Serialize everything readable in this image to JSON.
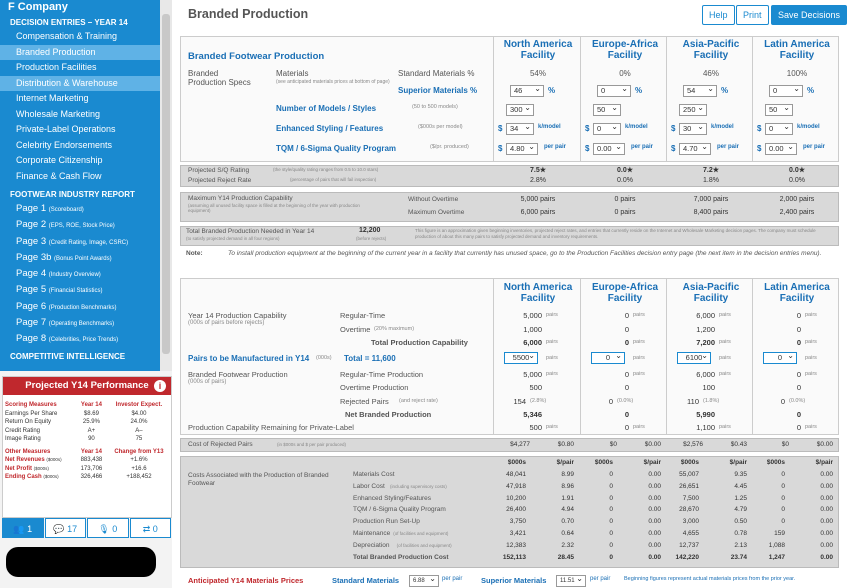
{
  "company": "F Company",
  "sidebar": {
    "decision_header": "DECISION ENTRIES – YEAR 14",
    "decisions": [
      "Compensation & Training",
      "Branded Production",
      "Production Facilities",
      "Distribution & Warehouse",
      "Internet Marketing",
      "Wholesale Marketing",
      "Private-Label Operations",
      "Celebrity Endorsements",
      "Corporate Citizenship",
      "Finance & Cash Flow"
    ],
    "report_header": "FOOTWEAR INDUSTRY REPORT",
    "pages": [
      [
        "Page 1",
        "(Scoreboard)"
      ],
      [
        "Page 2",
        "(EPS, ROE, Stock Price)"
      ],
      [
        "Page 3",
        "(Credit Rating, Image, CSRC)"
      ],
      [
        "Page 3b",
        "(Bonus Point Awards)"
      ],
      [
        "Page 4",
        "(Industry Overview)"
      ],
      [
        "Page 5",
        "(Financial Statistics)"
      ],
      [
        "Page 6",
        "(Production Benchmarks)"
      ],
      [
        "Page 7",
        "(Operating Benchmarks)"
      ],
      [
        "Page 8",
        "(Celebrities, Price Trends)"
      ]
    ],
    "ci_header": "COMPETITIVE INTELLIGENCE"
  },
  "perf": {
    "title": "Projected Y14 Performance",
    "h1": [
      "Scoring Measures",
      "Year 14",
      "Investor Expect."
    ],
    "rows1": [
      [
        "Earnings Per Share",
        "$8.69",
        "$4.00"
      ],
      [
        "Return On Equity",
        "25.9%",
        "24.0%"
      ],
      [
        "Credit Rating",
        "A+",
        "A–"
      ],
      [
        "Image Rating",
        "90",
        "75"
      ]
    ],
    "h2": [
      "Other Measures",
      "Year 14",
      "Change from Y13"
    ],
    "rows2": [
      [
        "Net Revenues",
        "($000s)",
        "883,438",
        "+1.6%"
      ],
      [
        "Net Profit",
        "($000s)",
        "173,706",
        "+16.6"
      ],
      [
        "Ending Cash",
        "($000s)",
        "326,466",
        "+188,452"
      ]
    ]
  },
  "tools": [
    "1",
    "17",
    "0",
    "0"
  ],
  "header": {
    "title": "Branded Production",
    "help": "Help",
    "print": "Print",
    "save": "Save Decisions"
  },
  "facilities": [
    "North America Facility",
    "Europe-Africa Facility",
    "Asia-Pacific Facility",
    "Latin America Facility"
  ],
  "p1": {
    "title": "Branded Footwear Production",
    "specs": "Branded Production Specs",
    "materials": "Materials",
    "mat_note": "(see anticipated materials prices at bottom of page)",
    "std_label": "Standard Materials %",
    "std": [
      "54%",
      "0%",
      "46%",
      "100%"
    ],
    "sup_label": "Superior Materials %",
    "sup": [
      "46",
      "0",
      "54",
      "0"
    ],
    "models_label": "Number of Models / Styles",
    "models_note": "(50 to 500 models)",
    "models": [
      "300",
      "50",
      "250",
      "50"
    ],
    "styling_label": "Enhanced Styling / Features",
    "styling_note": "($000s per model)",
    "styling": [
      "34",
      "0",
      "30",
      "0"
    ],
    "per_model": "k/model",
    "tqm_label": "TQM / 6-Sigma Quality Program",
    "tqm_note": "($/pr. produced)",
    "tqm": [
      "4.80",
      "0.00",
      "4.70",
      "0.00"
    ],
    "per_pair": "per pair"
  },
  "p2": {
    "sq_label": "Projected S/Q Rating",
    "sq_note": "(the style/quality rating ranges from 0.5 to 10.0 stars)",
    "sq": [
      "7.5★",
      "0.0★",
      "7.2★",
      "0.0★"
    ],
    "rej_label": "Projected Reject Rate",
    "rej_note": "(percentage of pairs that will fail inspection)",
    "rej": [
      "2.8%",
      "0.0%",
      "1.8%",
      "0.0%"
    ]
  },
  "p3": {
    "label": "Maximum Y14 Production Capability",
    "note": "(assuming all unused facility space is filled at the beginning of the year with production equipment)",
    "wo": "Without Overtime",
    "mo": "Maximum Overtime",
    "wo_vals": [
      "5,000 pairs",
      "0 pairs",
      "7,000 pairs",
      "2,000 pairs"
    ],
    "mo_vals": [
      "6,000 pairs",
      "0 pairs",
      "8,400 pairs",
      "2,400 pairs"
    ]
  },
  "p4": {
    "label": "Total Branded Production Needed in Year 14",
    "note": "(to satisfy projected demand in all four regions)",
    "val": "12,200",
    "val_note": "(before rejects)",
    "text": "This figure is an approximation given beginning inventories, projected reject rates, and entries that currently reside on the Internet and Wholesale Marketing decision pages. The company must schedule production of about this many pairs to satisfy projected demand and inventory requirements."
  },
  "note": {
    "label": "Note:",
    "text": "To install production equipment at the beginning of the current year in a facility that currently has unused space, go to the Production Facilities decision entry page (the next item in the decision entries menu)."
  },
  "p5": {
    "cap_label": "Year 14 Production Capability",
    "cap_note": "(000s of pairs before rejects)",
    "rt": "Regular-Time",
    "ot": "Overtime",
    "ot_note": "(20% maximum)",
    "tot": "Total Production Capability",
    "rt_vals": [
      "5,000",
      "0",
      "6,000",
      "0"
    ],
    "ot_vals": [
      "1,000",
      "0",
      "1,200",
      "0"
    ],
    "tot_vals": [
      "6,000",
      "0",
      "7,200",
      "0"
    ],
    "ptm": "Pairs to be Manufactured in Y14",
    "ptm_note": "(000s)",
    "ptm_total": "Total = 11,600",
    "ptm_vals": [
      "5500",
      "0",
      "6100",
      "0"
    ],
    "bfp": "Branded Footwear Production",
    "bfp_note": "(000s of pairs)",
    "rtp": "Regular-Time Production",
    "otp": "Overtime Production",
    "rp": "Rejected Pairs",
    "rp_note": "(and reject rate)",
    "nbp": "Net Branded Production",
    "rtp_vals": [
      "5,000",
      "0",
      "6,000",
      "0"
    ],
    "otp_vals": [
      "500",
      "0",
      "100",
      "0"
    ],
    "rp_vals": [
      "154",
      "0",
      "110",
      "0"
    ],
    "rp_rate": [
      "(2.8%)",
      "(0.0%)",
      "(1.8%)",
      "(0.0%)"
    ],
    "nbp_vals": [
      "5,346",
      "0",
      "5,990",
      "0"
    ],
    "rem": "Production Capability Remaining for Private-Label",
    "rem_vals": [
      "500",
      "0",
      "1,100",
      "0"
    ],
    "pairs": "pairs"
  },
  "p6": {
    "label": "Cost of Rejected Pairs",
    "note": "(in $000s and $ per pair produced)",
    "vals": [
      [
        "$4,277",
        "$0.80"
      ],
      [
        "$0",
        "$0.00"
      ],
      [
        "$2,576",
        "$0.43"
      ],
      [
        "$0",
        "$0.00"
      ]
    ]
  },
  "p7": {
    "label": "Costs Associated with the Production of Branded Footwear",
    "hdr": [
      "$000s",
      "$/pair"
    ],
    "rows": [
      [
        "Materials Cost",
        ""
      ],
      [
        "Labor Cost",
        "(including supervisory costs)"
      ],
      [
        "Enhanced Styling/Features",
        ""
      ],
      [
        "TQM / 6-Sigma Quality Program",
        ""
      ],
      [
        "Production Run Set-Up",
        ""
      ],
      [
        "Maintenance",
        "(of facilities and equipment)"
      ],
      [
        "Depreciation",
        "(of facilities and equipment)"
      ],
      [
        "Total Branded Production Cost",
        ""
      ]
    ],
    "vals": [
      [
        [
          "48,041",
          "8.99"
        ],
        [
          "47,918",
          "8.96"
        ],
        [
          "10,200",
          "1.91"
        ],
        [
          "26,400",
          "4.94"
        ],
        [
          "3,750",
          "0.70"
        ],
        [
          "3,421",
          "0.64"
        ],
        [
          "12,383",
          "2.32"
        ],
        [
          "152,113",
          "28.45"
        ]
      ],
      [
        [
          "0",
          "0.00"
        ],
        [
          "0",
          "0.00"
        ],
        [
          "0",
          "0.00"
        ],
        [
          "0",
          "0.00"
        ],
        [
          "0",
          "0.00"
        ],
        [
          "0",
          "0.00"
        ],
        [
          "0",
          "0.00"
        ],
        [
          "0",
          "0.00"
        ]
      ],
      [
        [
          "55,007",
          "9.35"
        ],
        [
          "26,651",
          "4.45"
        ],
        [
          "7,500",
          "1.25"
        ],
        [
          "28,670",
          "4.79"
        ],
        [
          "3,000",
          "0.50"
        ],
        [
          "4,655",
          "0.78"
        ],
        [
          "12,737",
          "2.13"
        ],
        [
          "142,220",
          "23.74"
        ]
      ],
      [
        [
          "0",
          "0.00"
        ],
        [
          "0",
          "0.00"
        ],
        [
          "0",
          "0.00"
        ],
        [
          "0",
          "0.00"
        ],
        [
          "0",
          "0.00"
        ],
        [
          "159",
          "0.00"
        ],
        [
          "1,088",
          "0.00"
        ],
        [
          "1,247",
          "0.00"
        ]
      ]
    ]
  },
  "footer": {
    "label": "Anticipated Y14 Materials Prices",
    "std": "Standard Materials",
    "std_val": "6.88",
    "sup": "Superior Materials",
    "sup_val": "11.51",
    "per_pair": "per pair",
    "note": "Beginning figures represent actual materials prices from the prior year."
  }
}
